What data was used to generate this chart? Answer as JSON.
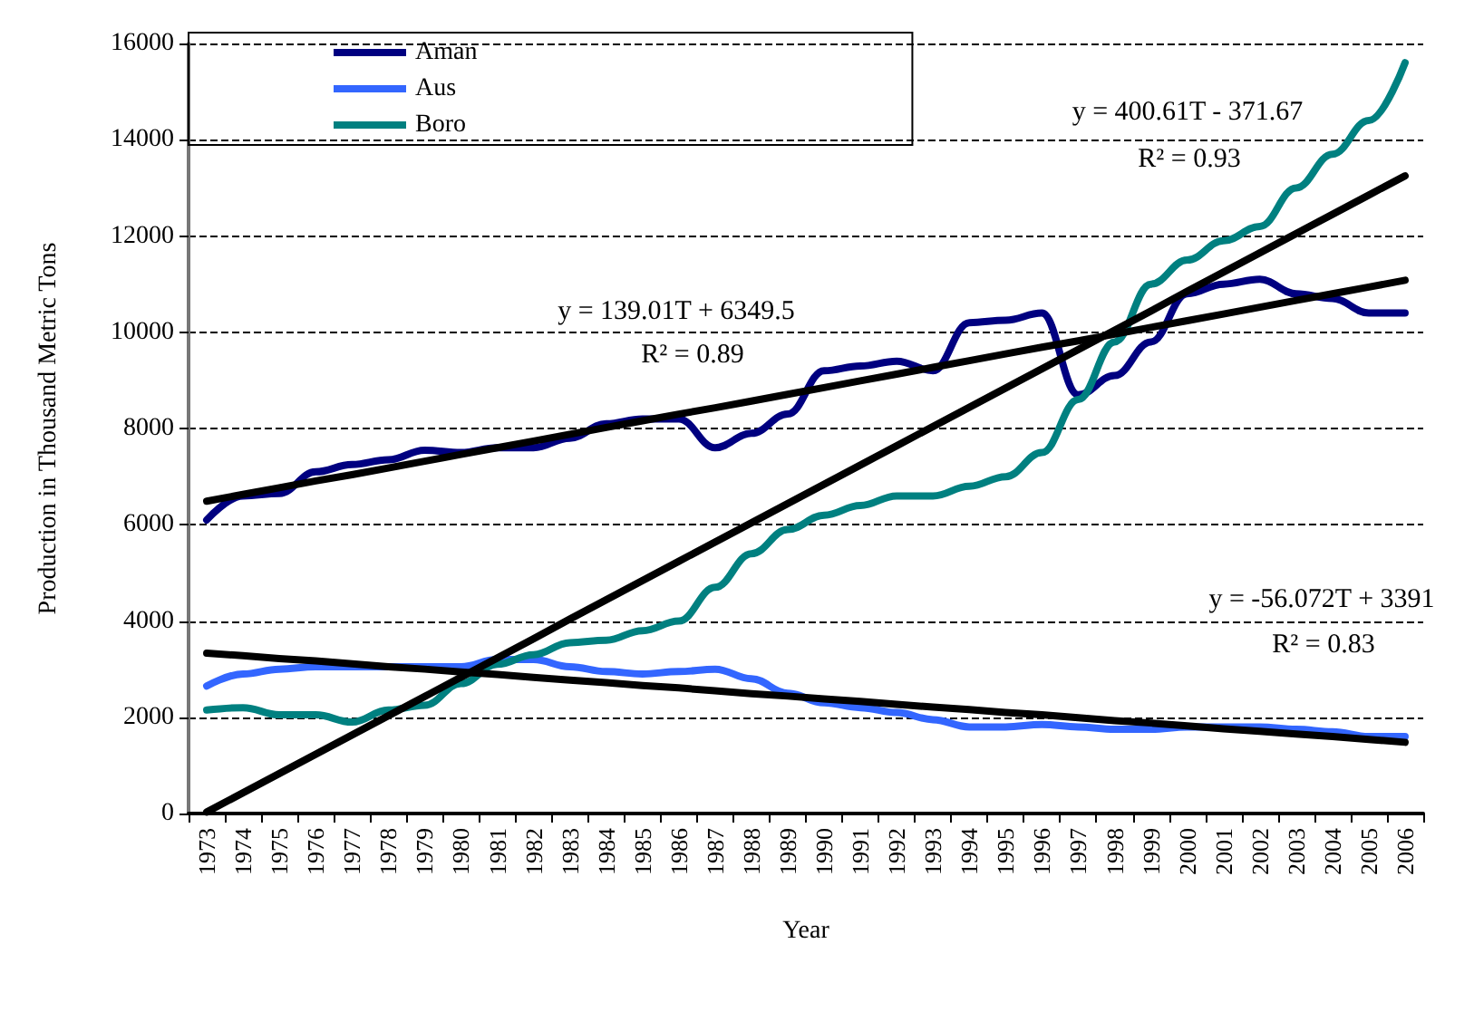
{
  "chart_data": {
    "type": "line",
    "xlabel": "Year",
    "ylabel": "Production in Thousand Metric Tons",
    "categories": [
      "1973",
      "1974",
      "1975",
      "1976",
      "1977",
      "1978",
      "1979",
      "1980",
      "1981",
      "1982",
      "1983",
      "1984",
      "1985",
      "1986",
      "1987",
      "1988",
      "1989",
      "1990",
      "1991",
      "1992",
      "1993",
      "1994",
      "1995",
      "1996",
      "1997",
      "1998",
      "1999",
      "2000",
      "2001",
      "2002",
      "2003",
      "2004",
      "2005",
      "2006"
    ],
    "series": [
      {
        "name": "Aman",
        "color": "#000080",
        "values": [
          6100,
          6600,
          6650,
          7100,
          7250,
          7350,
          7550,
          7500,
          7600,
          7600,
          7800,
          8100,
          8200,
          8200,
          7600,
          7900,
          8300,
          9200,
          9300,
          9400,
          9200,
          10200,
          10250,
          10400,
          8700,
          9100,
          9800,
          10800,
          11000,
          11100,
          10800,
          10700,
          10400,
          10400
        ]
      },
      {
        "name": "Aus",
        "color": "#3366ff",
        "values": [
          2650,
          2900,
          3000,
          3050,
          3050,
          3050,
          3050,
          3050,
          3200,
          3200,
          3050,
          2950,
          2900,
          2950,
          3000,
          2800,
          2500,
          2300,
          2200,
          2100,
          1950,
          1800,
          1800,
          1850,
          1800,
          1750,
          1750,
          1800,
          1800,
          1800,
          1750,
          1700,
          1600,
          1600
        ]
      },
      {
        "name": "Boro",
        "color": "#008080",
        "values": [
          2150,
          2200,
          2050,
          2050,
          1900,
          2150,
          2250,
          2700,
          3100,
          3300,
          3550,
          3600,
          3800,
          4000,
          4700,
          5400,
          5900,
          6200,
          6400,
          6600,
          6600,
          6800,
          7000,
          7500,
          8600,
          9800,
          11000,
          11500,
          11900,
          12200,
          13000,
          13700,
          14400,
          15600
        ]
      },
      {
        "color": "#000000",
        "values": [
          6490,
          6630,
          6770,
          6910,
          7040,
          7180,
          7320,
          7460,
          7600,
          7740,
          7880,
          8020,
          8160,
          8300,
          8430,
          8570,
          8710,
          8850,
          8990,
          9130,
          9270,
          9410,
          9550,
          9690,
          9820,
          9960,
          10100,
          10240,
          10380,
          10520,
          10660,
          10800,
          10940,
          11080
        ]
      },
      {
        "color": "#000000",
        "values": [
          30,
          430,
          830,
          1230,
          1630,
          2030,
          2430,
          2830,
          3230,
          3630,
          4040,
          4440,
          4840,
          5240,
          5640,
          6040,
          6440,
          6840,
          7240,
          7640,
          8040,
          8440,
          8840,
          9240,
          9640,
          10040,
          10440,
          10850,
          11250,
          11650,
          12050,
          12450,
          12850,
          13250
        ]
      },
      {
        "color": "#000000",
        "values": [
          3330,
          3280,
          3220,
          3170,
          3110,
          3050,
          3000,
          2940,
          2890,
          2830,
          2770,
          2720,
          2660,
          2610,
          2550,
          2490,
          2440,
          2380,
          2330,
          2270,
          2210,
          2160,
          2100,
          2050,
          1990,
          1930,
          1880,
          1820,
          1760,
          1710,
          1650,
          1600,
          1540,
          1480
        ]
      }
    ],
    "annotations": [
      "y = 400.61T - 371.67",
      "R² = 0.93",
      "y = 139.01T + 6349.5",
      "R² = 0.89",
      "y = -56.072T + 3391",
      "R² = 0.83"
    ],
    "ylim": [
      0,
      16000
    ],
    "yticks": [
      0,
      2000,
      4000,
      6000,
      8000,
      10000,
      12000,
      14000,
      16000
    ],
    "grid": "y",
    "legend": "top left",
    "marker": "none",
    "line_style": "solid"
  }
}
